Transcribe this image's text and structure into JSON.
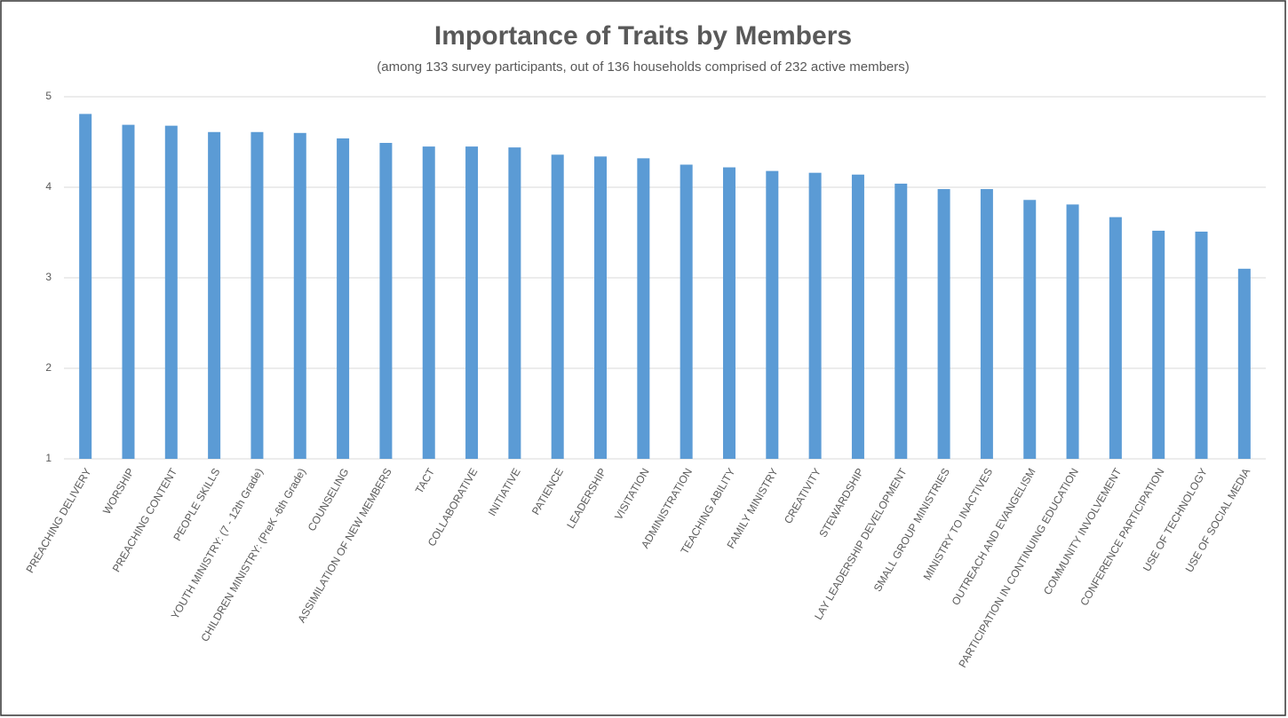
{
  "chart_data": {
    "type": "bar",
    "title": "Importance of Traits by Members",
    "subtitle": "(among 133 survey participants, out of 136 households comprised of 232 active members)",
    "categories": [
      "PREACHING DELIVERY",
      "WORSHIP",
      "PREACHING CONTENT",
      "PEOPLE SKILLS",
      "YOUTH MINISTRY: (7 - 12th Grade)",
      "CHILDREN MINISTRY: (PreK -6th Grade)",
      "COUNSELING",
      "ASSIMILATION OF NEW MEMBERS",
      "TACT",
      "COLLABORATIVE",
      "INITIATIVE",
      "PATIENCE",
      "LEADERSHIP",
      "VISITATION",
      "ADMINISTRATION",
      "TEACHING ABILITY",
      "FAMILY MINISTRY",
      "CREATIVITY",
      "STEWARDSHIP",
      "LAY LEADERSHIP DEVELOPMENT",
      "SMALL GROUP MINISTRIES",
      "MINISTRY TO INACTIVES",
      "OUTREACH AND EVANGELISM",
      "PARTICIPATION IN CONTINUING EDUCATION",
      "COMMUNITY INVOLVEMENT",
      "CONFERENCE PARTICIPATION",
      "USE OF TECHNOLOGY",
      "USE OF SOCIAL MEDIA"
    ],
    "values": [
      4.81,
      4.69,
      4.68,
      4.61,
      4.61,
      4.6,
      4.54,
      4.49,
      4.45,
      4.45,
      4.44,
      4.36,
      4.34,
      4.32,
      4.25,
      4.22,
      4.18,
      4.16,
      4.14,
      4.04,
      3.98,
      3.98,
      3.86,
      3.81,
      3.67,
      3.52,
      3.51,
      3.1
    ],
    "color": "#5b9bd5",
    "ylim": [
      1,
      5
    ],
    "yticks": [
      1,
      2,
      3,
      4,
      5
    ],
    "grid": true
  }
}
